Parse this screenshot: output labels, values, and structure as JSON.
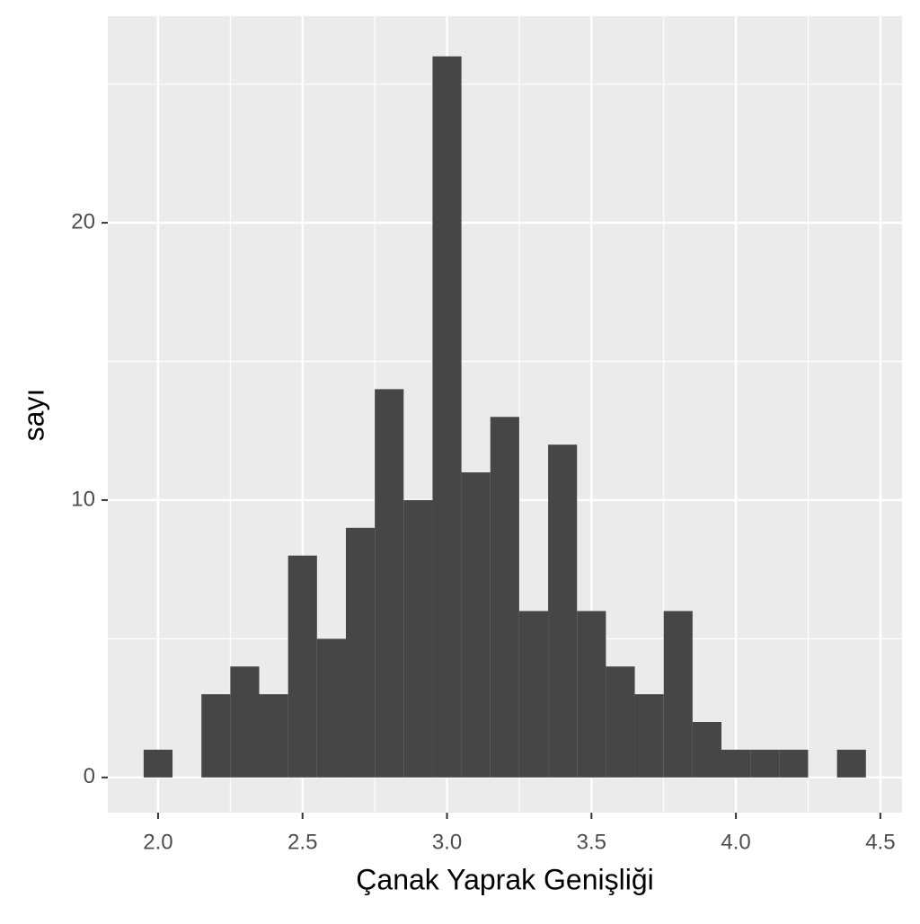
{
  "chart_data": {
    "type": "histogram",
    "x_label": "Çanak Yaprak Genişliği",
    "y_label": "sayı",
    "bins": [
      1.95,
      2.05,
      2.15,
      2.25,
      2.35,
      2.45,
      2.55,
      2.65,
      2.75,
      2.85,
      2.95,
      3.05,
      3.15,
      3.25,
      3.35,
      3.45,
      3.55,
      3.65,
      3.75,
      3.85,
      3.95,
      4.05,
      4.15,
      4.25,
      4.35,
      4.45
    ],
    "values": [
      1,
      0,
      3,
      4,
      3,
      8,
      5,
      9,
      14,
      10,
      26,
      11,
      13,
      6,
      12,
      6,
      4,
      3,
      6,
      2,
      1,
      1,
      1,
      0,
      1
    ],
    "color": "#464646",
    "xlim": [
      1.826,
      4.575
    ],
    "ylim": [
      -1.27,
      27.45
    ],
    "xticks": [
      {
        "value": 2.0,
        "label": "2.0"
      },
      {
        "value": 2.5,
        "label": "2.5"
      },
      {
        "value": 3.0,
        "label": "3.0"
      },
      {
        "value": 3.5,
        "label": "3.5"
      },
      {
        "value": 4.0,
        "label": "4.0"
      },
      {
        "value": 4.5,
        "label": "4.5"
      }
    ],
    "yticks": [
      0,
      10,
      20
    ],
    "xminor": [
      2.25,
      2.75,
      3.25,
      3.75,
      4.25
    ],
    "yminor": [
      5,
      15,
      25
    ],
    "grid": true
  }
}
